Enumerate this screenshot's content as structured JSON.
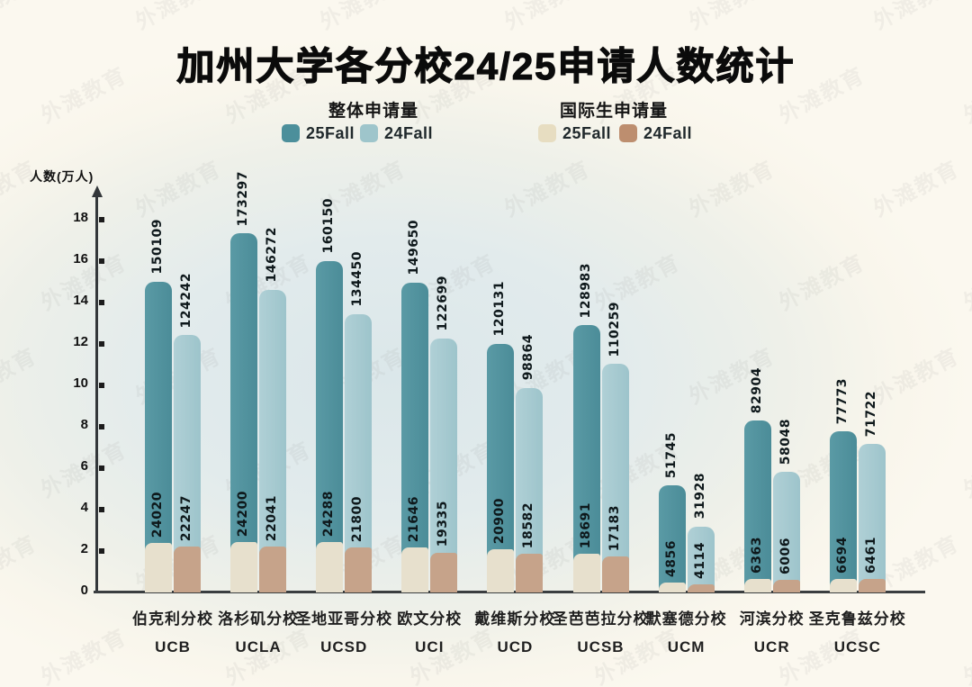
{
  "title": "加州大学各分校24/25申请人数统计",
  "watermark": {
    "text": "外滩教育"
  },
  "legend": {
    "groups": [
      {
        "title": "整体申请量",
        "items": [
          {
            "label": "25Fall",
            "color": "#4c8f9b"
          },
          {
            "label": "24Fall",
            "color": "#9ec5cb"
          }
        ]
      },
      {
        "title": "国际生申请量",
        "items": [
          {
            "label": "25Fall",
            "color": "#e7ddc1"
          },
          {
            "label": "24Fall",
            "color": "#bd8e6f"
          }
        ]
      }
    ]
  },
  "colors": {
    "bar_total_25fall": "#4f929e",
    "bar_total_24fall": "#a3c8cf",
    "bar_intl_25fall": "#e7e0cd",
    "bar_intl_24fall": "#c6a38a",
    "axis": "#33373a",
    "background_cream": "#faf6ec",
    "background_blue": "#dbe7ea"
  },
  "chart_data": {
    "type": "bar",
    "title": "加州大学各分校24/25申请人数统计",
    "xlabel": "",
    "ylabel": "人数(万人)",
    "ylim": [
      0,
      18
    ],
    "yticks": [
      0,
      2,
      4,
      6,
      8,
      10,
      12,
      14,
      16,
      18
    ],
    "y_unit_per_tick": 10000,
    "grid": false,
    "legend_position": "top",
    "categories": [
      {
        "name_cn": "伯克利分校",
        "code": "UCB"
      },
      {
        "name_cn": "洛杉矶分校",
        "code": "UCLA"
      },
      {
        "name_cn": "圣地亚哥分校",
        "code": "UCSD"
      },
      {
        "name_cn": "欧文分校",
        "code": "UCI"
      },
      {
        "name_cn": "戴维斯分校",
        "code": "UCD"
      },
      {
        "name_cn": "圣芭芭拉分校",
        "code": "UCSB"
      },
      {
        "name_cn": "默塞德分校",
        "code": "UCM"
      },
      {
        "name_cn": "河滨分校",
        "code": "UCR"
      },
      {
        "name_cn": "圣克鲁兹分校",
        "code": "UCSC"
      }
    ],
    "series": [
      {
        "name": "整体申请量 25Fall",
        "key": "total_25fall",
        "values": [
          150109,
          173297,
          160150,
          149650,
          120131,
          128983,
          51745,
          82904,
          77773
        ]
      },
      {
        "name": "整体申请量 24Fall",
        "key": "total_24fall",
        "values": [
          124242,
          146272,
          134450,
          122699,
          98864,
          110259,
          31928,
          58048,
          71722
        ]
      },
      {
        "name": "国际生申请量 25Fall",
        "key": "intl_25fall",
        "values": [
          24020,
          24200,
          24288,
          21646,
          20900,
          18691,
          4856,
          6363,
          6694
        ]
      },
      {
        "name": "国际生申请量 24Fall",
        "key": "intl_24fall",
        "values": [
          22247,
          22041,
          21800,
          19335,
          18582,
          17183,
          4114,
          6006,
          6461
        ]
      }
    ]
  }
}
